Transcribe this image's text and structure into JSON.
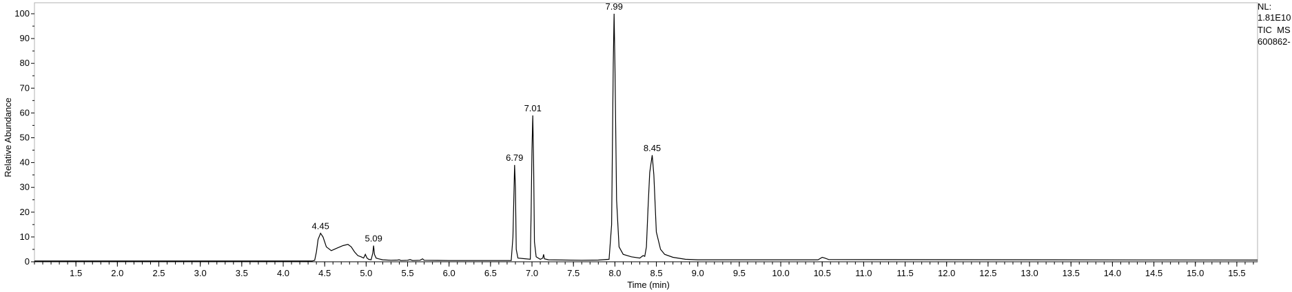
{
  "side_panel": {
    "nl_label": "NL:",
    "nl_value": "1.81E10",
    "scan_filter": "TIC  MS",
    "sample_id": "600862-"
  },
  "chart_data": {
    "type": "line",
    "title": "",
    "xlabel": "Time (min)",
    "ylabel": "Relative Abundance",
    "xlim": [
      1.0,
      15.75
    ],
    "ylim": [
      0,
      100
    ],
    "x_ticks": [
      "1.5",
      "2.0",
      "2.5",
      "3.0",
      "3.5",
      "4.0",
      "4.5",
      "5.0",
      "5.5",
      "6.0",
      "6.5",
      "7.0",
      "7.5",
      "8.0",
      "8.5",
      "9.0",
      "9.5",
      "10.0",
      "10.5",
      "11.0",
      "11.5",
      "12.0",
      "12.5",
      "13.0",
      "13.5",
      "14.0",
      "14.5",
      "15.0",
      "15.5"
    ],
    "y_ticks": [
      "0",
      "10",
      "20",
      "30",
      "40",
      "50",
      "60",
      "70",
      "80",
      "90",
      "100"
    ],
    "peak_labels": [
      {
        "x": 4.45,
        "y": 11.5,
        "label": "4.45"
      },
      {
        "x": 5.09,
        "y": 6.5,
        "label": "5.09"
      },
      {
        "x": 6.79,
        "y": 39,
        "label": "6.79"
      },
      {
        "x": 7.01,
        "y": 59,
        "label": "7.01"
      },
      {
        "x": 7.99,
        "y": 100,
        "label": "7.99"
      },
      {
        "x": 8.45,
        "y": 43,
        "label": "8.45"
      }
    ],
    "series": [
      {
        "color": "#000000",
        "points": [
          [
            1.0,
            0.3
          ],
          [
            4.35,
            0.3
          ],
          [
            4.38,
            0.6
          ],
          [
            4.4,
            4
          ],
          [
            4.42,
            9
          ],
          [
            4.45,
            11.5
          ],
          [
            4.48,
            10
          ],
          [
            4.52,
            6
          ],
          [
            4.58,
            4.5
          ],
          [
            4.65,
            5.5
          ],
          [
            4.72,
            6.5
          ],
          [
            4.78,
            7
          ],
          [
            4.82,
            6
          ],
          [
            4.86,
            4
          ],
          [
            4.9,
            2.5
          ],
          [
            4.94,
            2
          ],
          [
            4.97,
            1.5
          ],
          [
            4.99,
            3
          ],
          [
            5.01,
            1.5
          ],
          [
            5.03,
            1
          ],
          [
            5.06,
            0.8
          ],
          [
            5.08,
            3.5
          ],
          [
            5.09,
            6.5
          ],
          [
            5.1,
            3
          ],
          [
            5.12,
            1.5
          ],
          [
            5.15,
            1.2
          ],
          [
            5.2,
            0.8
          ],
          [
            5.3,
            0.6
          ],
          [
            5.38,
            0.7
          ],
          [
            5.4,
            0.8
          ],
          [
            5.42,
            0.5
          ],
          [
            5.5,
            0.6
          ],
          [
            5.53,
            0.9
          ],
          [
            5.56,
            0.5
          ],
          [
            5.65,
            0.6
          ],
          [
            5.68,
            1.2
          ],
          [
            5.7,
            0.6
          ],
          [
            6.0,
            0.5
          ],
          [
            6.5,
            0.5
          ],
          [
            6.75,
            0.5
          ],
          [
            6.77,
            10
          ],
          [
            6.79,
            39
          ],
          [
            6.8,
            30
          ],
          [
            6.81,
            5
          ],
          [
            6.83,
            1.5
          ],
          [
            6.98,
            1
          ],
          [
            6.99,
            20
          ],
          [
            7.0,
            45
          ],
          [
            7.01,
            59
          ],
          [
            7.02,
            40
          ],
          [
            7.03,
            8
          ],
          [
            7.05,
            2
          ],
          [
            7.1,
            1
          ],
          [
            7.13,
            1.5
          ],
          [
            7.14,
            3
          ],
          [
            7.15,
            1.2
          ],
          [
            7.2,
            0.8
          ],
          [
            7.6,
            0.6
          ],
          [
            7.8,
            0.7
          ],
          [
            7.93,
            1
          ],
          [
            7.96,
            15
          ],
          [
            7.98,
            80
          ],
          [
            7.99,
            100
          ],
          [
            8.0,
            80
          ],
          [
            8.02,
            25
          ],
          [
            8.05,
            6
          ],
          [
            8.1,
            3
          ],
          [
            8.2,
            2
          ],
          [
            8.3,
            1.5
          ],
          [
            8.34,
            2.5
          ],
          [
            8.36,
            2.2
          ],
          [
            8.38,
            6
          ],
          [
            8.4,
            22
          ],
          [
            8.42,
            36
          ],
          [
            8.45,
            43
          ],
          [
            8.47,
            35
          ],
          [
            8.5,
            12
          ],
          [
            8.55,
            5
          ],
          [
            8.6,
            3
          ],
          [
            8.7,
            1.8
          ],
          [
            8.85,
            1
          ],
          [
            9.0,
            0.8
          ],
          [
            10.45,
            0.8
          ],
          [
            10.5,
            1.8
          ],
          [
            10.53,
            1.5
          ],
          [
            10.58,
            0.9
          ],
          [
            15.75,
            0.7
          ]
        ]
      }
    ]
  }
}
